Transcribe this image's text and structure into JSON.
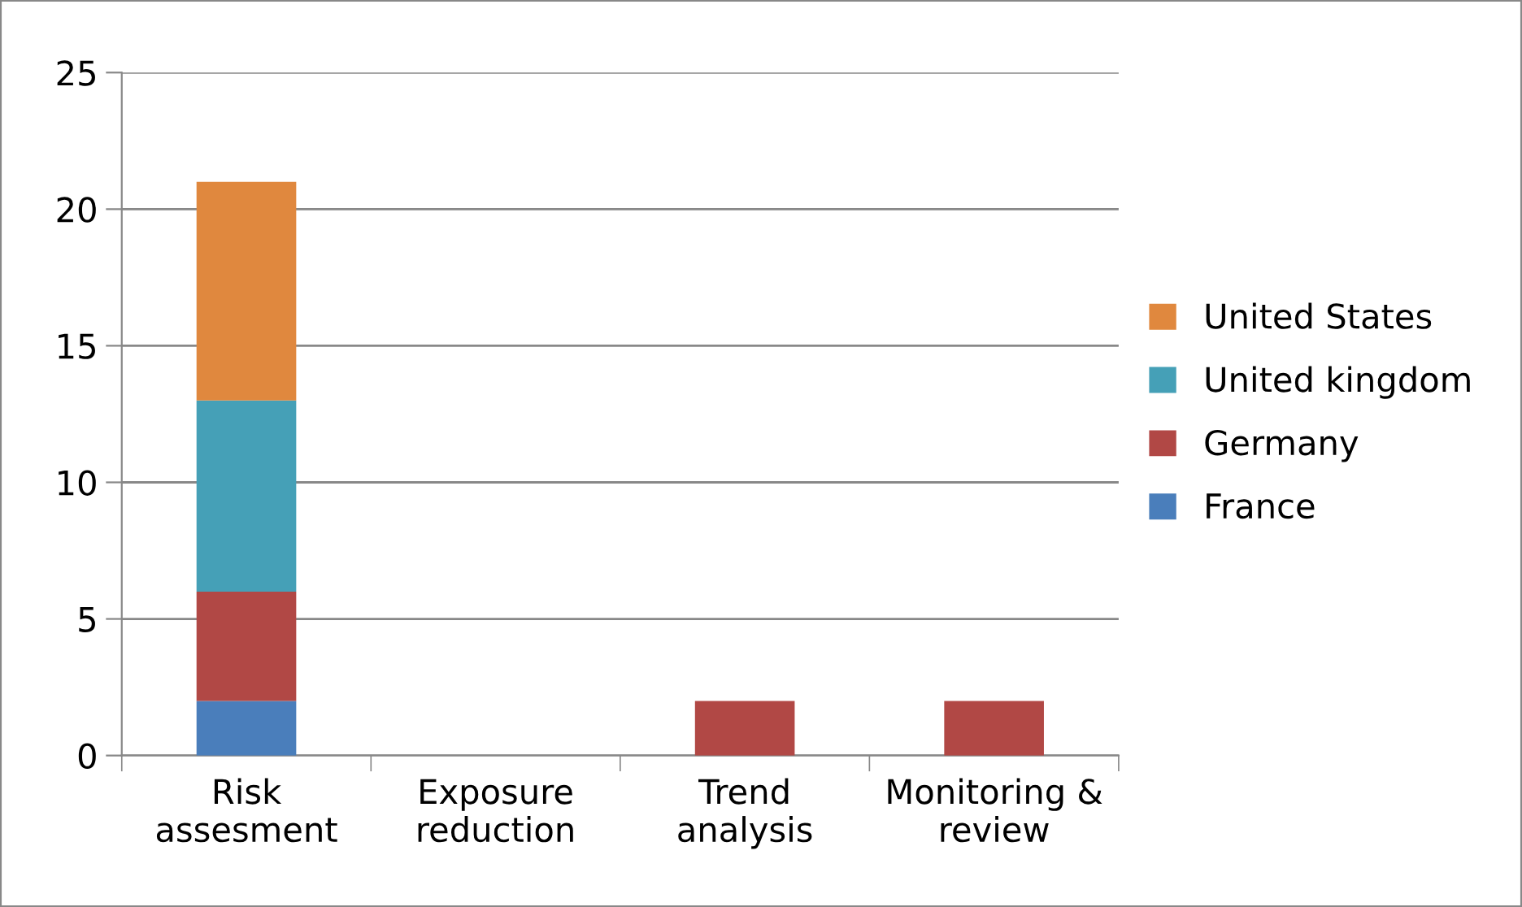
{
  "chart_data": {
    "type": "bar",
    "stacked": true,
    "categories": [
      "Risk\nassesment",
      "Exposure\nreduction",
      "Trend\nanalysis",
      "Monitoring &\nreview"
    ],
    "series": [
      {
        "name": "France",
        "color": "#4a7ebb",
        "values": [
          2,
          0,
          0,
          0
        ]
      },
      {
        "name": "Germany",
        "color": "#b14845",
        "values": [
          4,
          0,
          2,
          2
        ]
      },
      {
        "name": "United kingdom",
        "color": "#45a0b7",
        "values": [
          7,
          0,
          0,
          0
        ]
      },
      {
        "name": "United States",
        "color": "#e0883e",
        "values": [
          8,
          0,
          0,
          0
        ]
      }
    ],
    "ylim": [
      0,
      25
    ],
    "yticks": [
      0,
      5,
      10,
      15,
      20,
      25
    ],
    "grid": "y",
    "legend": "right"
  }
}
